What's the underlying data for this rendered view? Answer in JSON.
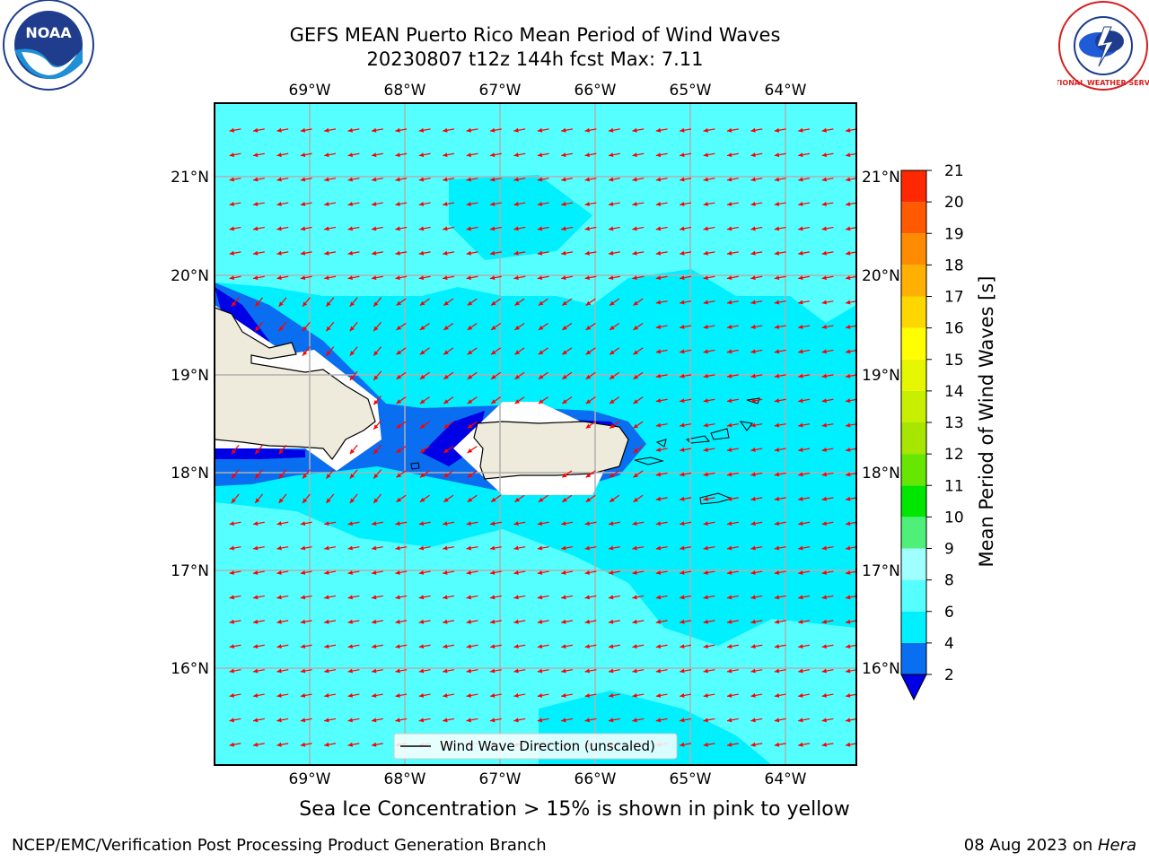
{
  "title": {
    "line1": "GEFS MEAN Puerto Rico Mean Period of Wind Waves",
    "line2": "20230807 t12z 144h fcst   Max: 7.11"
  },
  "map": {
    "lon_labels": [
      "69°W",
      "68°W",
      "67°W",
      "66°W",
      "65°W",
      "64°W"
    ],
    "lat_labels": [
      "21°N",
      "20°N",
      "19°N",
      "18°N",
      "17°N",
      "16°N"
    ],
    "legend_label": "Wind Wave Direction (unscaled)",
    "arrow_color": "#ff0000",
    "land_color": "#efebdc"
  },
  "colorbar": {
    "label": "Mean Period of Wind Waves [s]",
    "ticks": [
      "2",
      "4",
      "6",
      "8",
      "9",
      "10",
      "11",
      "12",
      "13",
      "14",
      "15",
      "16",
      "17",
      "18",
      "19",
      "20",
      "21"
    ],
    "colors": [
      "#0a6ef0",
      "#00f0ff",
      "#55ffff",
      "#a0ffff",
      "#4ef07a",
      "#00e600",
      "#66e600",
      "#a6e600",
      "#c8ef00",
      "#e6f500",
      "#ffff00",
      "#ffd700",
      "#ffb000",
      "#ff8c00",
      "#ff5a00",
      "#ff2800",
      "#ff0000"
    ],
    "extend_color": "#0000e6"
  },
  "caption": "Sea Ice Concentration > 15% is shown in pink to yellow",
  "footer": {
    "left": "NCEP/EMC/Verification Post Processing Product Generation Branch",
    "date": "08 Aug 2023 on ",
    "machine": "Hera"
  },
  "logos": {
    "noaa": "NOAA",
    "nws": "NATIONAL WEATHER SERVICE"
  }
}
